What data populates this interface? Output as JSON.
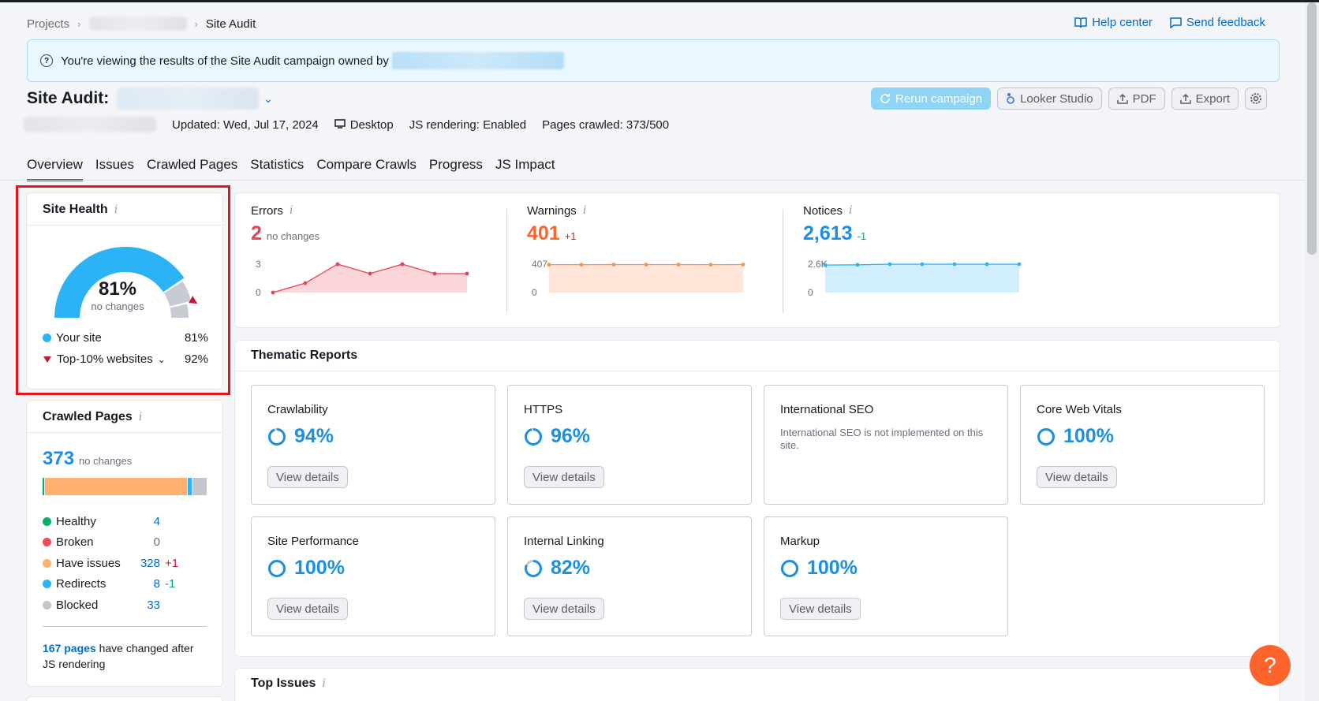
{
  "breadcrumb": {
    "projects": "Projects",
    "current": "Site Audit"
  },
  "top_links": {
    "help": "Help center",
    "feedback": "Send feedback"
  },
  "notice": {
    "text": "You're viewing the results of the Site Audit campaign owned by"
  },
  "title": {
    "label": "Site Audit:"
  },
  "meta": {
    "updated": "Updated: Wed, Jul 17, 2024",
    "device": "Desktop",
    "js_rendering": "JS rendering: Enabled",
    "pages_crawled": "Pages crawled: 373/500"
  },
  "actions": {
    "rerun": "Rerun campaign",
    "looker": "Looker Studio",
    "pdf": "PDF",
    "export": "Export"
  },
  "tabs": [
    "Overview",
    "Issues",
    "Crawled Pages",
    "Statistics",
    "Compare Crawls",
    "Progress",
    "JS Impact"
  ],
  "site_health": {
    "title": "Site Health",
    "value": "81%",
    "change": "no changes",
    "value_fraction": 0.81,
    "benchmark_fraction": 0.92,
    "your_site_label": "Your site",
    "your_site_value": "81%",
    "top10_label": "Top-10% websites",
    "top10_value": "92%"
  },
  "crawled_pages": {
    "title": "Crawled Pages",
    "total": "373",
    "change": "no changes",
    "items": [
      {
        "label": "Healthy",
        "value": "4",
        "delta": "",
        "color": "#00b06b",
        "count": 4
      },
      {
        "label": "Broken",
        "value": "0",
        "delta": "",
        "color": "#ef4c5a",
        "count": 0
      },
      {
        "label": "Have issues",
        "value": "328",
        "delta": "+1",
        "color": "#ffb06e",
        "count": 328
      },
      {
        "label": "Redirects",
        "value": "8",
        "delta": "-1",
        "color": "#2bb3f5",
        "count": 8
      },
      {
        "label": "Blocked",
        "value": "33",
        "delta": "",
        "color": "#c4c6cd",
        "count": 33
      }
    ],
    "js_pages_link": "167 pages",
    "js_pages_text": "have changed after JS rendering"
  },
  "metrics": {
    "errors": {
      "label": "Errors",
      "value": "2",
      "change": "no changes",
      "ymax_label": "3",
      "ymin_label": "0",
      "points": [
        0,
        1,
        3,
        2,
        3,
        2,
        2
      ],
      "ymax": 3,
      "color": "#e64252"
    },
    "warnings": {
      "label": "Warnings",
      "value": "401",
      "change": "+1",
      "ymax_label": "407",
      "ymin_label": "0",
      "points": [
        400,
        400,
        401,
        401,
        401,
        400,
        401
      ],
      "ymax": 407,
      "color": "#ff8f4d"
    },
    "notices": {
      "label": "Notices",
      "value": "2,613",
      "change": "-1",
      "ymax_label": "2.6K",
      "ymin_label": "0",
      "points": [
        2520,
        2540,
        2610,
        2612,
        2614,
        2614,
        2613
      ],
      "ymax": 2600,
      "color": "#2bb3f5"
    }
  },
  "thematic": {
    "title": "Thematic Reports",
    "view_details": "View details",
    "reports": [
      {
        "name": "Crawlability",
        "value": "94%",
        "pct": 94
      },
      {
        "name": "HTTPS",
        "value": "96%",
        "pct": 96
      },
      {
        "name": "International SEO",
        "value": "",
        "pct": null,
        "desc": "International SEO is not implemented on this site."
      },
      {
        "name": "Core Web Vitals",
        "value": "100%",
        "pct": 100
      },
      {
        "name": "Site Performance",
        "value": "100%",
        "pct": 100
      },
      {
        "name": "Internal Linking",
        "value": "82%",
        "pct": 82
      },
      {
        "name": "Markup",
        "value": "100%",
        "pct": 100
      }
    ]
  },
  "top_issues": {
    "title": "Top Issues"
  },
  "help_fab": {
    "label": "?"
  }
}
